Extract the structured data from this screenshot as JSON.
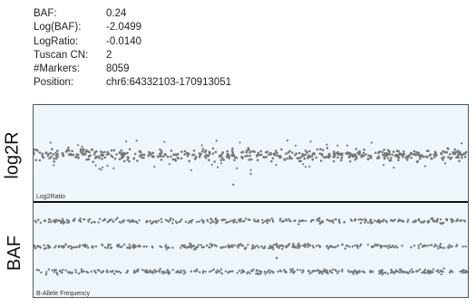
{
  "info": {
    "rows": [
      {
        "key": "BAF:",
        "value": "0.24"
      },
      {
        "key": "Log(BAF):",
        "value": "-2.0499"
      },
      {
        "key": "LogRatio:",
        "value": "-0.0140"
      },
      {
        "key": "Tuscan CN:",
        "value": "2"
      },
      {
        "key": "#Markers:",
        "value": "8059"
      },
      {
        "key": "Position:",
        "value": "chr6:64332103-170913051"
      }
    ]
  },
  "tracks": {
    "log2r": {
      "title": "log2R",
      "panel_label": "Log2Ratio"
    },
    "baf": {
      "title": "BAF",
      "panel_label": "B-Allele Frequency"
    }
  },
  "colors": {
    "point": "#777777",
    "panel_bg": "#eef6fb",
    "divider": "#111111"
  },
  "chart_data": [
    {
      "type": "scatter",
      "name": "log2r-track",
      "ylabel": "log2R",
      "band_centers": [
        0
      ],
      "outliers": [
        {
          "x": 0.46,
          "y": -0.55
        },
        {
          "x": 0.5,
          "y": -0.35
        }
      ]
    },
    {
      "type": "scatter",
      "name": "baf-track",
      "ylabel": "BAF",
      "band_centers": [
        1.0,
        0.5,
        0.0
      ],
      "outliers": [
        {
          "x": 0.56,
          "y": 0.27
        }
      ]
    }
  ]
}
